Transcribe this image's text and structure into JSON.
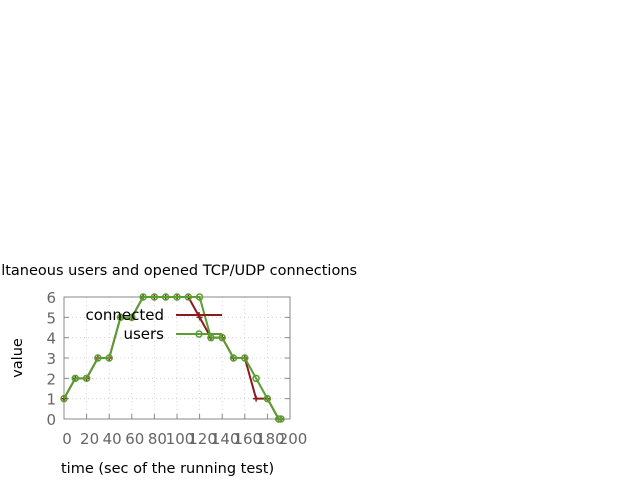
{
  "chart_data": {
    "type": "line",
    "title": "ultaneous users and opened TCP/UDP connections",
    "xlabel": "time (sec of the running test)",
    "ylabel": "value",
    "xlim": [
      0,
      200
    ],
    "ylim": [
      0,
      6
    ],
    "x_ticks": [
      0,
      20,
      40,
      60,
      80,
      100,
      120,
      140,
      160,
      180,
      200
    ],
    "y_ticks": [
      0,
      1,
      2,
      3,
      4,
      5,
      6
    ],
    "grid": true,
    "legend_position": "top-right (inside plot)",
    "series": [
      {
        "name": "connected",
        "color": "#8b1a1a",
        "marker": "plus",
        "x": [
          0,
          10,
          20,
          30,
          40,
          50,
          60,
          70,
          80,
          90,
          100,
          110,
          120,
          130,
          140,
          150,
          160,
          170,
          180,
          190,
          192
        ],
        "y": [
          1,
          2,
          2,
          3,
          3,
          5,
          5,
          6,
          6,
          6,
          6,
          6,
          5,
          4,
          4,
          3,
          3,
          1,
          1,
          0,
          0
        ]
      },
      {
        "name": "users",
        "color": "#5a9e32",
        "marker": "open-circle",
        "x": [
          0,
          10,
          20,
          30,
          40,
          50,
          60,
          70,
          80,
          90,
          100,
          110,
          120,
          130,
          140,
          150,
          160,
          170,
          180,
          190,
          192
        ],
        "y": [
          1,
          2,
          2,
          3,
          3,
          5,
          5,
          6,
          6,
          6,
          6,
          6,
          6,
          4,
          4,
          3,
          3,
          2,
          1,
          0,
          0
        ]
      }
    ]
  }
}
